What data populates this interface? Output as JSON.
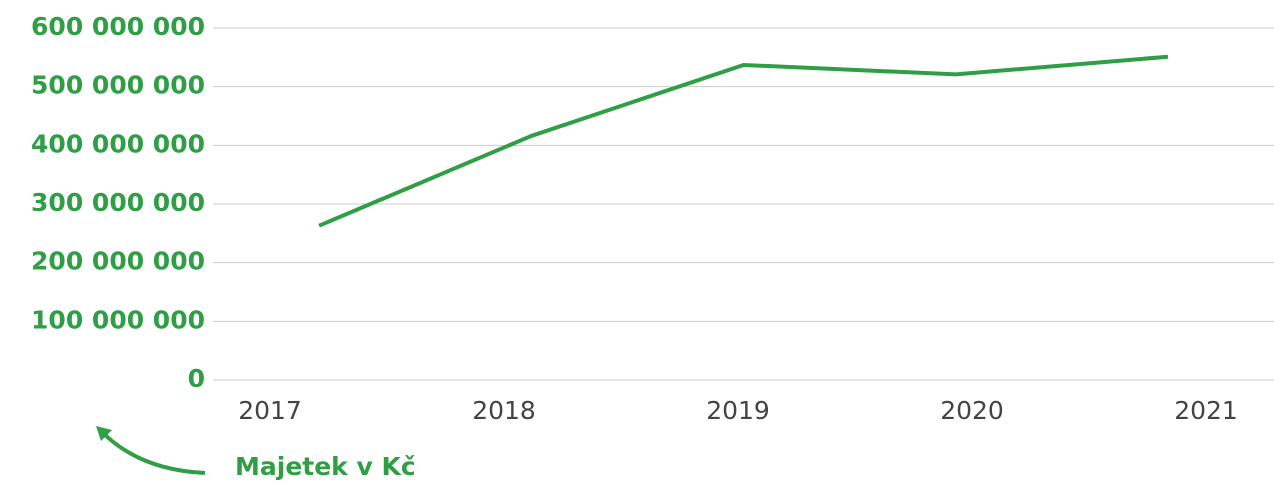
{
  "chart_data": {
    "type": "line",
    "categories": [
      "2017",
      "2018",
      "2019",
      "2020",
      "2021"
    ],
    "series": [
      {
        "name": "Majetek v Kč",
        "color": "#2f9e44",
        "values": [
          263000000,
          416000000,
          537000000,
          521000000,
          551000000
        ]
      }
    ],
    "ylim": [
      0,
      600000000
    ],
    "yticks": [
      0,
      {
        "value": 100000000,
        "label": "100 000 000"
      },
      {
        "value": 200000000,
        "label": "200 000 000"
      },
      {
        "value": 300000000,
        "label": "300 000 000"
      },
      {
        "value": 400000000,
        "label": "400 000 000"
      },
      {
        "value": 500000000,
        "label": "500 000 000"
      },
      {
        "value": 600000000,
        "label": "600 000 000"
      }
    ],
    "grid": true,
    "annotation": "Majetek v Kč"
  }
}
